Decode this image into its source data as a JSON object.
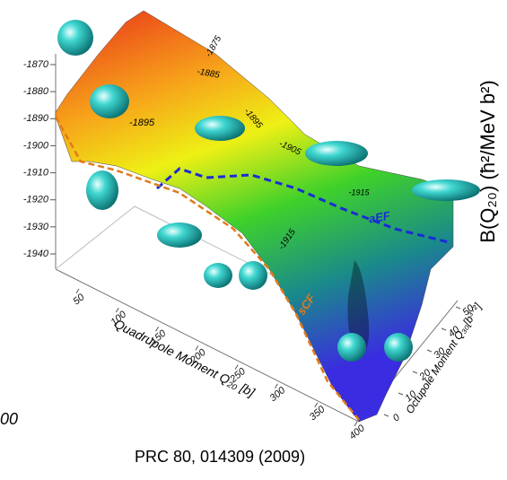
{
  "chart_data": {
    "type": "surface",
    "zlabel": "B(Q₂₀) (ħ²/MeV b²)",
    "xlabel": "Quadrupole Moment Q₂₀ [b]",
    "ylabel": "Octupole Moment Q₃₀[b³ᐟ²]",
    "zlim": [
      -1940,
      -1870
    ],
    "zticks": [
      -1870,
      -1880,
      -1890,
      -1900,
      -1910,
      -1920,
      -1930,
      -1940
    ],
    "xlim": [
      50,
      400
    ],
    "xticks": [
      50,
      100,
      150,
      200,
      250,
      300,
      350,
      400
    ],
    "ylim": [
      0,
      50
    ],
    "yticks": [
      0,
      10,
      20,
      30,
      40,
      50
    ],
    "annotations": [
      "-1875",
      "-1885",
      "-1895",
      "-1895",
      "-1905",
      "-1915",
      "-1915",
      "aEF",
      "sCF",
      "00"
    ],
    "citation": "PRC 80, 014309 (2009)"
  }
}
